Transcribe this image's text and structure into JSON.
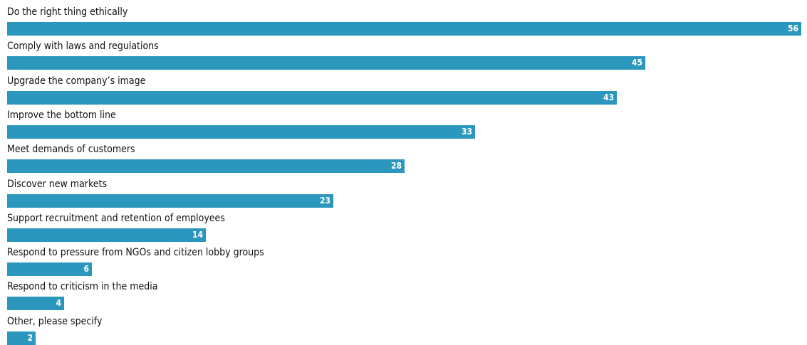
{
  "chart_data": {
    "type": "bar",
    "orientation": "horizontal",
    "categories": [
      "Do the right thing ethically",
      "Comply with laws and regulations",
      "Upgrade the company’s image",
      "Improve the bottom line",
      "Meet demands of customers",
      "Discover new markets",
      "Support recruitment and retention of employees",
      "Respond to pressure from NGOs and citizen lobby groups",
      "Respond to criticism in the media",
      "Other, please specify"
    ],
    "values": [
      56,
      45,
      43,
      33,
      28,
      23,
      14,
      6,
      4,
      2
    ],
    "data_labels": [
      "56",
      "45",
      "43",
      "33",
      "28",
      "23",
      "14",
      "6",
      "4",
      "2"
    ],
    "bar_color": "#2b97bd",
    "label_color": "#111111",
    "value_label_color": "#ffffff",
    "xlim": [
      0,
      56
    ],
    "grid": false,
    "legend": "none"
  }
}
